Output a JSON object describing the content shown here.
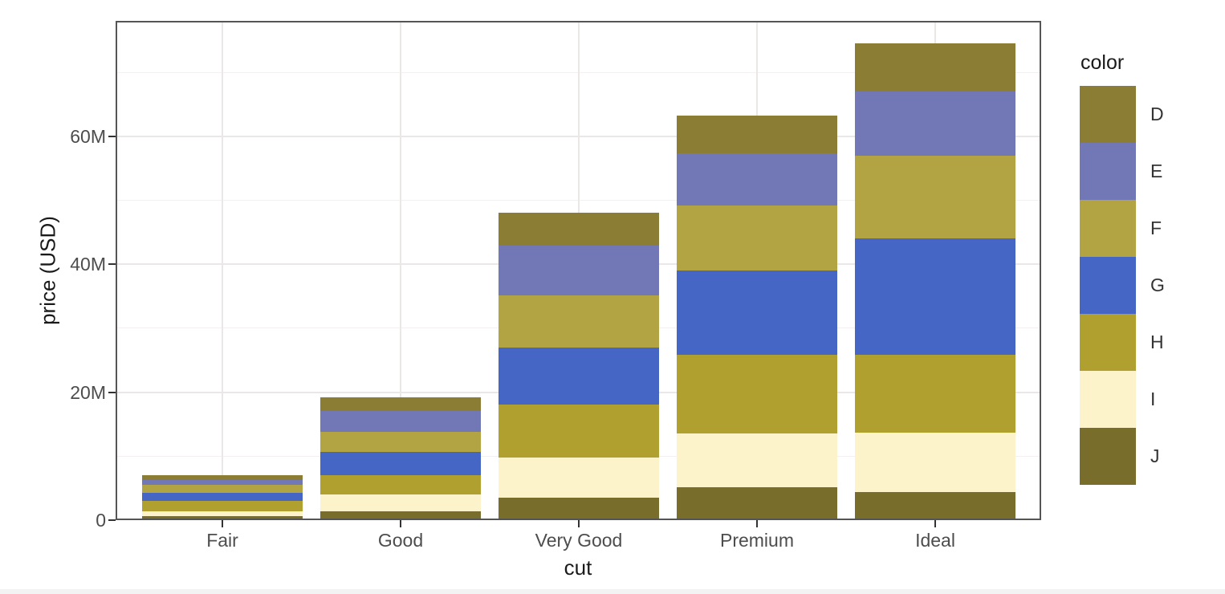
{
  "chart_data": {
    "type": "bar",
    "stacked": true,
    "title": "",
    "xlabel": "cut",
    "ylabel": "price (USD)",
    "values_unit": "millions of USD",
    "categories": [
      "Fair",
      "Good",
      "Very Good",
      "Premium",
      "Ideal"
    ],
    "series": [
      {
        "name": "D",
        "color": "#8b7d33",
        "values": [
          0.7,
          2.25,
          5.25,
          5.82,
          7.45
        ]
      },
      {
        "name": "E",
        "color": "#7278b5",
        "values": [
          0.82,
          3.19,
          7.72,
          8.27,
          10.14
        ]
      },
      {
        "name": "F",
        "color": "#b2a343",
        "values": [
          1.19,
          3.18,
          8.18,
          10.08,
          12.91
        ]
      },
      {
        "name": "G",
        "color": "#4566c5",
        "values": [
          1.33,
          3.59,
          8.9,
          13.16,
          18.17
        ]
      },
      {
        "name": "H",
        "color": "#b0a02f",
        "values": [
          1.56,
          3.0,
          8.27,
          12.31,
          12.11
        ]
      },
      {
        "name": "I",
        "color": "#fcf3cb",
        "values": [
          0.82,
          2.65,
          6.33,
          8.49,
          9.32
        ]
      },
      {
        "name": "J",
        "color": "#786d2a",
        "values": [
          0.59,
          1.4,
          3.46,
          5.09,
          4.41
        ]
      }
    ],
    "stack_order_bottom_to_top": [
      "J",
      "I",
      "H",
      "G",
      "F",
      "E",
      "D"
    ],
    "bar_totals": [
      7.02,
      19.28,
      48.11,
      63.22,
      74.51
    ],
    "y_ticks": [
      {
        "value": 0,
        "label": "0"
      },
      {
        "value": 20,
        "label": "20M"
      },
      {
        "value": 40,
        "label": "40M"
      },
      {
        "value": 60,
        "label": "60M"
      }
    ],
    "y_minor_gridlines": [
      10,
      30,
      50,
      70
    ],
    "ylim": [
      0,
      78
    ],
    "grid": true,
    "legend": {
      "title": "color",
      "position": "right",
      "entries": [
        "D",
        "E",
        "F",
        "G",
        "H",
        "I",
        "J"
      ]
    }
  }
}
